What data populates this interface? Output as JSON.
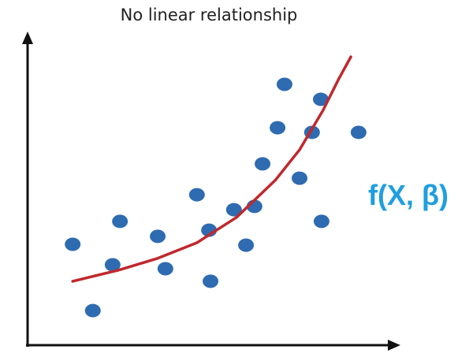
{
  "chart_data": {
    "type": "scatter",
    "title": "No linear relationship",
    "annotation": "f(X, β)",
    "annotation_color": "#1e9fe0",
    "xlim": [
      0,
      100
    ],
    "ylim": [
      0,
      100
    ],
    "series": [
      {
        "type": "scatter",
        "color": "#2e6bb0",
        "x": [
          12.3,
          17.8,
          23.2,
          25.2,
          35.5,
          37.6,
          46.2,
          49.5,
          49.9,
          56.3,
          59.6,
          61.9,
          64.1,
          68.2,
          70.1,
          74.2,
          77.6,
          80.0,
          80.2,
          90.3
        ],
        "values": [
          33.0,
          11.3,
          26.3,
          40.5,
          35.6,
          25.0,
          49.2,
          37.6,
          20.9,
          44.3,
          32.7,
          45.4,
          59.3,
          71.1,
          85.3,
          54.6,
          69.6,
          80.4,
          40.5,
          69.6
        ]
      },
      {
        "type": "line",
        "color": "#c0282d",
        "x": [
          12.3,
          24.7,
          35.5,
          46.2,
          57.0,
          67.7,
          74.2,
          80.6,
          84.9,
          88.2
        ],
        "values": [
          20.9,
          24.5,
          28.4,
          33.5,
          41.8,
          54.1,
          63.9,
          76.8,
          87.1,
          94.3
        ]
      }
    ]
  }
}
